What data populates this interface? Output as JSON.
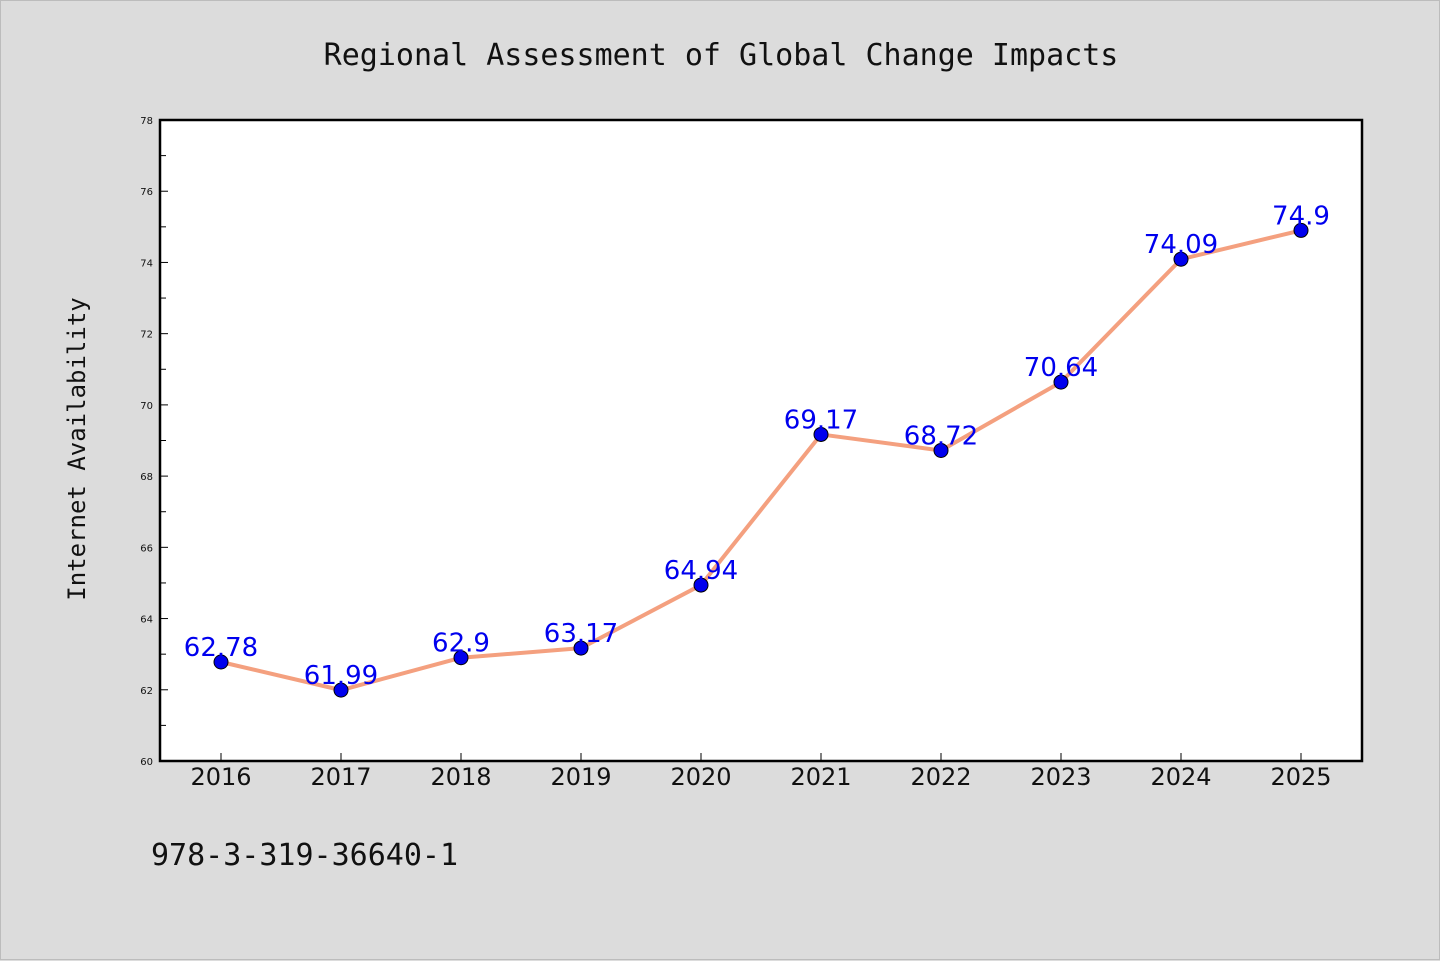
{
  "chart_data": {
    "type": "line",
    "title": "Regional Assessment of Global Change Impacts",
    "ylabel": "Internet Availability",
    "xlabel": "",
    "x": [
      "2016",
      "2017",
      "2018",
      "2019",
      "2020",
      "2021",
      "2022",
      "2023",
      "2024",
      "2025"
    ],
    "series": [
      {
        "values": [
          62.78,
          61.99,
          62.9,
          63.17,
          64.94,
          69.17,
          68.72,
          70.64,
          74.09,
          74.9
        ]
      }
    ],
    "data_labels": [
      "62.78",
      "61.99",
      "62.9",
      "63.17",
      "64.94",
      "69.17",
      "68.72",
      "70.64",
      "74.09",
      "74.9"
    ],
    "ylim": [
      60,
      78
    ],
    "yticks": [
      "60",
      "62",
      "64",
      "66",
      "68",
      "70",
      "72",
      "74",
      "76",
      "78"
    ],
    "y_minor_step": 1,
    "grid": false,
    "legend": "none",
    "colors": {
      "line": "#f4a07f",
      "marker": "#0000ee",
      "data_label": "#0000ee",
      "plot_background": "#ffffff",
      "figure_background": "#dcdcdc"
    }
  },
  "annotation": "978-3-319-36640-1"
}
